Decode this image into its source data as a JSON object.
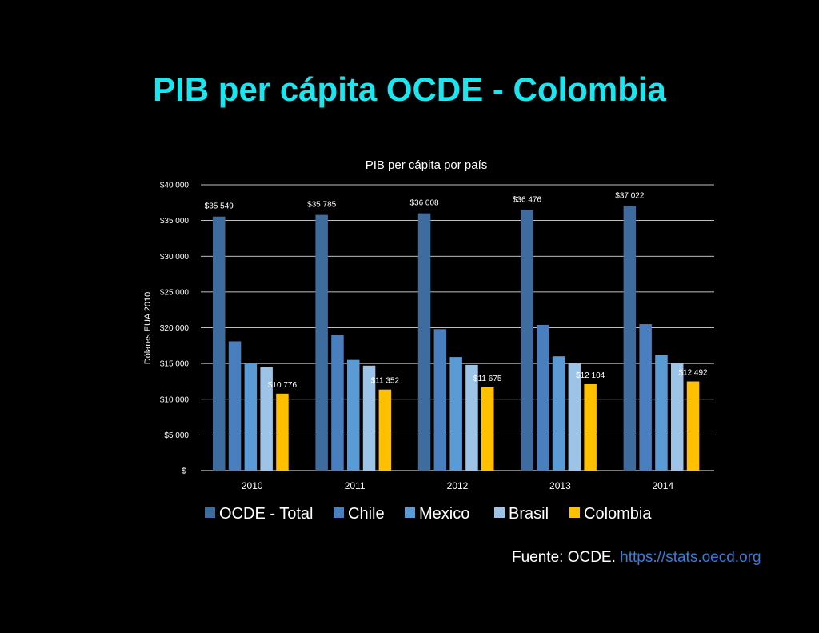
{
  "slide": {
    "title": "PIB per cápita OCDE - Colombia",
    "source_prefix": "Fuente: OCDE.",
    "source_link": "https://stats.oecd.org"
  },
  "colors": {
    "background": "#000000",
    "title": "#19e6ee",
    "link": "#3b7bd6"
  },
  "chart_data": {
    "type": "bar",
    "title": "PIB per cápita por país",
    "xlabel": "",
    "ylabel": "Dólares EUA 2010",
    "ylim": [
      0,
      40000
    ],
    "yticks": [
      0,
      5000,
      10000,
      15000,
      20000,
      25000,
      30000,
      35000,
      40000
    ],
    "ytick_labels": [
      "$-",
      "$5 000",
      "$10 000",
      "$15 000",
      "$20 000",
      "$25 000",
      "$30 000",
      "$35 000",
      "$40 000"
    ],
    "grid": true,
    "legend_position": "bottom",
    "categories": [
      "2010",
      "2011",
      "2012",
      "2013",
      "2014"
    ],
    "series": [
      {
        "name": "OCDE - Total",
        "color": "#3f6c9e",
        "values": [
          35549,
          35785,
          36008,
          36476,
          37022
        ],
        "labels": [
          "$35 549",
          "$35 785",
          "$36 008",
          "$36 476",
          "$37 022"
        ]
      },
      {
        "name": "Chile",
        "color": "#4a7fbf",
        "values": [
          18100,
          19000,
          19800,
          20400,
          20500
        ]
      },
      {
        "name": "Mexico",
        "color": "#5b9bd5",
        "values": [
          15100,
          15500,
          15900,
          16000,
          16200
        ]
      },
      {
        "name": "Brasil",
        "color": "#9dc3e6",
        "values": [
          14500,
          14700,
          14800,
          15100,
          15100
        ]
      },
      {
        "name": "Colombia",
        "color": "#ffc000",
        "values": [
          10776,
          11352,
          11675,
          12104,
          12492
        ],
        "labels": [
          "$10 776",
          "$11 352",
          "$11 675",
          "$12 104",
          "$12 492"
        ]
      }
    ]
  }
}
